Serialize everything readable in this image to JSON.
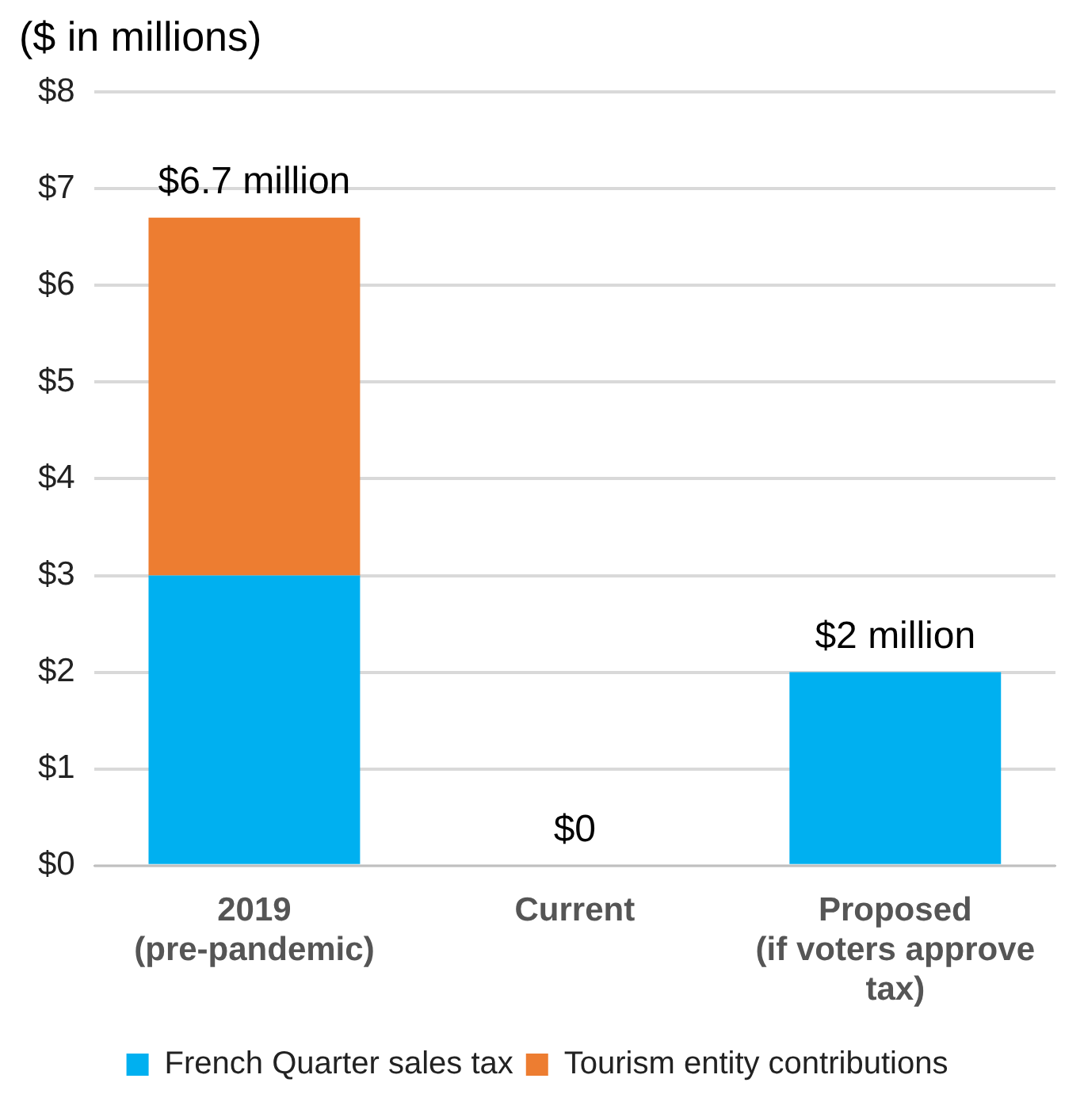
{
  "chart_data": {
    "type": "bar",
    "stacked": true,
    "ylabel": "($ in millions)",
    "categories": [
      "2019\n(pre-pandemic)",
      "Current",
      "Proposed\n(if voters approve\ntax)"
    ],
    "series": [
      {
        "name": "French Quarter sales tax",
        "color": "#00b0f0",
        "values": [
          3,
          0,
          2
        ]
      },
      {
        "name": "Tourism entity contributions",
        "color": "#ed7d31",
        "values": [
          3.7,
          0,
          0
        ]
      }
    ],
    "totals": [
      "$6.7 million",
      "$0",
      "$2 million"
    ],
    "ylim": [
      0,
      8
    ],
    "yticks": [
      {
        "value": 0,
        "label": "$0"
      },
      {
        "value": 1,
        "label": "$1"
      },
      {
        "value": 2,
        "label": "$2"
      },
      {
        "value": 3,
        "label": "$3"
      },
      {
        "value": 4,
        "label": "$4"
      },
      {
        "value": 5,
        "label": "$5"
      },
      {
        "value": 6,
        "label": "$6"
      },
      {
        "value": 7,
        "label": "$7"
      },
      {
        "value": 8,
        "label": "$8"
      }
    ],
    "grid": "y",
    "legend": "bottom"
  }
}
